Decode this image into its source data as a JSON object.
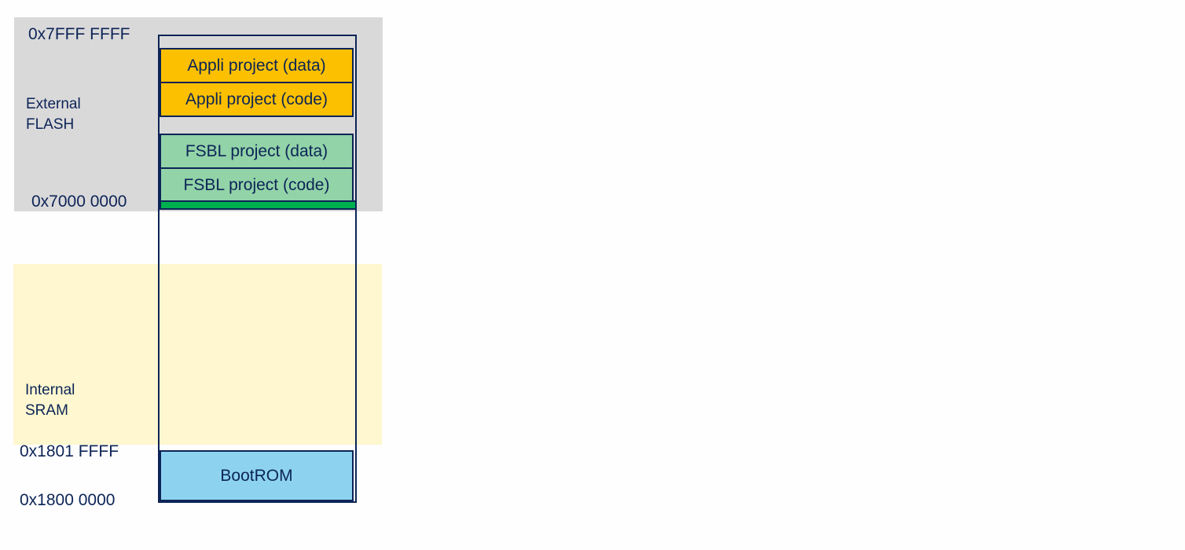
{
  "regions": {
    "external_flash": {
      "label": "External\nFLASH",
      "color": "#dad9da"
    },
    "internal_sram": {
      "label": "Internal\nSRAM",
      "color": "#fef7cf"
    }
  },
  "addresses": {
    "flash_top": "0x7FFF FFFF",
    "flash_base": "0x7000 0000",
    "sram_bootrom_top": "0x1801 FFFF",
    "bootrom_base": "0x1800 0000"
  },
  "blocks": [
    {
      "label": "Appli project (data)",
      "color": "#fcc000"
    },
    {
      "label": "Appli project (code)",
      "color": "#fcc000"
    },
    {
      "label": "FSBL project (data)",
      "color": "#92d3a8"
    },
    {
      "label": "FSBL project (code)",
      "color": "#92d3a8"
    },
    {
      "label": "",
      "color": "#00b050"
    },
    {
      "label": "BootROM",
      "color": "#8dd3ef"
    }
  ],
  "colors": {
    "text": "#0c2456",
    "outline": "#0c2456"
  }
}
